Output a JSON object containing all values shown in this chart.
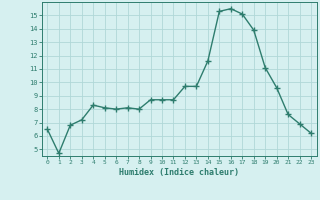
{
  "x": [
    0,
    1,
    2,
    3,
    4,
    5,
    6,
    7,
    8,
    9,
    10,
    11,
    12,
    13,
    14,
    15,
    16,
    17,
    18,
    19,
    20,
    21,
    22,
    23
  ],
  "y": [
    6.5,
    4.7,
    6.8,
    7.2,
    8.3,
    8.1,
    8.0,
    8.1,
    8.0,
    8.7,
    8.7,
    8.7,
    9.7,
    9.7,
    11.6,
    15.3,
    15.5,
    15.1,
    13.9,
    11.1,
    9.6,
    7.6,
    6.9,
    6.2
  ],
  "line_color": "#2e7d6e",
  "bg_color": "#d6f0f0",
  "grid_color": "#b0d8d8",
  "xlabel": "Humidex (Indice chaleur)",
  "yticks": [
    5,
    6,
    7,
    8,
    9,
    10,
    11,
    12,
    13,
    14,
    15
  ],
  "xlim": [
    -0.5,
    23.5
  ],
  "ylim": [
    4.5,
    16.0
  ]
}
